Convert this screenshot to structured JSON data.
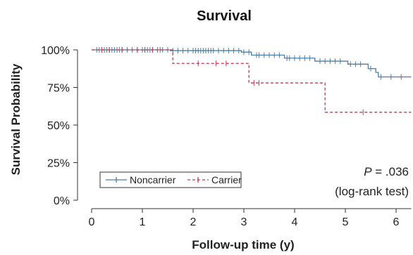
{
  "chart_data": {
    "type": "line",
    "title": "Survival",
    "xlabel": "Follow-up time (y)",
    "ylabel": "Survival Probability",
    "xlim": [
      0,
      6.3
    ],
    "ylim": [
      0,
      1
    ],
    "x_ticks": [
      0,
      1,
      2,
      3,
      4,
      5,
      6
    ],
    "x_tick_labels": [
      "0",
      "1",
      "2",
      "3",
      "4",
      "5",
      "6"
    ],
    "y_ticks": [
      0,
      0.25,
      0.5,
      0.75,
      1.0
    ],
    "y_tick_labels": [
      "0%",
      "25%",
      "50%",
      "75%",
      "100%"
    ],
    "grid": false,
    "legend_position": "bottom-left",
    "series": [
      {
        "name": "Noncarrier",
        "color": "#4a7ea6",
        "style": "solid",
        "steps": [
          [
            0,
            1.0
          ],
          [
            1.55,
            0.995
          ],
          [
            2.95,
            0.985
          ],
          [
            3.15,
            0.965
          ],
          [
            3.8,
            0.945
          ],
          [
            4.4,
            0.925
          ],
          [
            5.05,
            0.905
          ],
          [
            5.45,
            0.875
          ],
          [
            5.6,
            0.85
          ],
          [
            5.65,
            0.82
          ],
          [
            6.3,
            0.82
          ]
        ],
        "censor_x": [
          0.1,
          0.15,
          0.2,
          0.25,
          0.3,
          0.35,
          0.4,
          0.45,
          0.5,
          0.55,
          0.6,
          0.7,
          0.8,
          0.9,
          1.0,
          1.05,
          1.1,
          1.15,
          1.2,
          1.3,
          1.4,
          1.5,
          1.6,
          1.7,
          1.8,
          1.9,
          2.0,
          2.05,
          2.1,
          2.15,
          2.2,
          2.25,
          2.3,
          2.35,
          2.4,
          2.5,
          2.6,
          2.7,
          2.8,
          2.9,
          3.0,
          3.1,
          3.25,
          3.3,
          3.4,
          3.5,
          3.6,
          3.7,
          3.85,
          3.9,
          4.0,
          4.1,
          4.2,
          4.3,
          4.5,
          4.6,
          4.7,
          4.8,
          4.9,
          5.1,
          5.2,
          5.3,
          5.5,
          5.7,
          5.9,
          6.1
        ]
      },
      {
        "name": "Carrier",
        "color": "#c8364f",
        "style": "dashed",
        "steps": [
          [
            0,
            1.0
          ],
          [
            1.6,
            0.91
          ],
          [
            3.1,
            0.78
          ],
          [
            4.6,
            0.585
          ],
          [
            6.3,
            0.585
          ]
        ],
        "censor_x": [
          0.2,
          0.35,
          0.6,
          0.9,
          1.05,
          1.2,
          1.35,
          2.1,
          2.45,
          2.65,
          3.2,
          3.3,
          5.35
        ]
      }
    ],
    "annotations": {
      "p_value_label": "P",
      "p_value_text": " = .036",
      "test_text": "(log-rank test)"
    }
  }
}
